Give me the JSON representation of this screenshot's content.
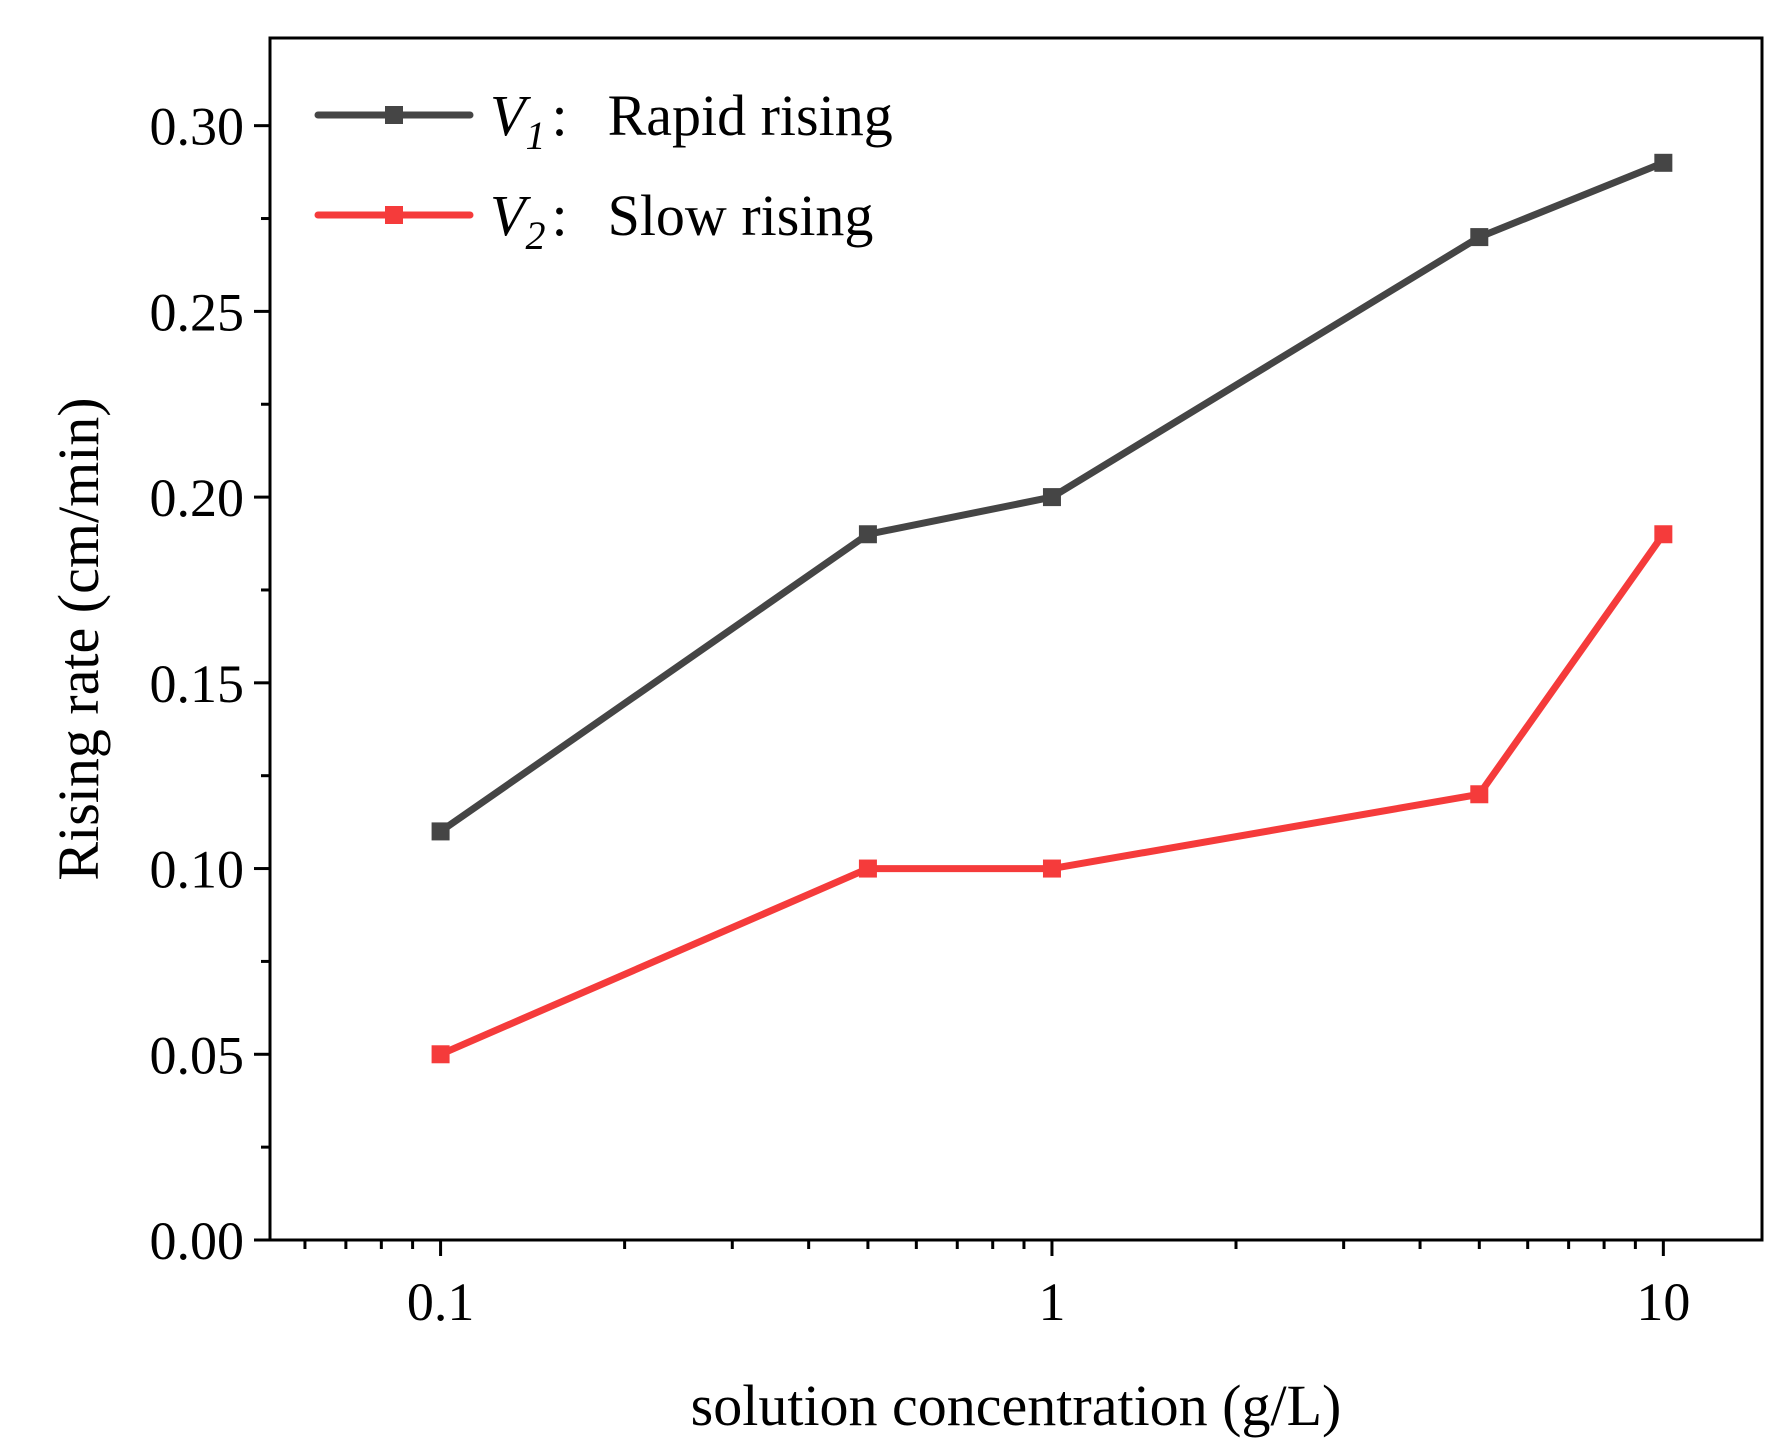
{
  "chart_data": {
    "type": "line",
    "title": "",
    "xlabel": "solution concentration (g/L)",
    "ylabel": "Rising rate (cm/min)",
    "xscale": "log",
    "xlim": [
      0.0526,
      14.5
    ],
    "ylim": [
      0,
      0.3236
    ],
    "x": [
      0.1,
      0.5,
      1,
      5,
      10
    ],
    "x_ticks": [
      0.1,
      1,
      10
    ],
    "x_tick_labels": [
      "0.1",
      "1",
      "10"
    ],
    "y_ticks": [
      0,
      0.05,
      0.1,
      0.15,
      0.2,
      0.25,
      0.3
    ],
    "y_tick_labels": [
      "0.00",
      "0.05",
      "0.10",
      "0.15",
      "0.20",
      "0.25",
      "0.30"
    ],
    "grid": false,
    "legend_position": "top-left",
    "series": [
      {
        "name": "V1: Rapid rising",
        "legend_symbol": "V",
        "legend_subscript": "1",
        "legend_separator": ":",
        "legend_text": "Rapid rising",
        "color": "#454545",
        "values": [
          0.11,
          0.19,
          0.2,
          0.27,
          0.29
        ]
      },
      {
        "name": "V2: Slow rising",
        "legend_symbol": "V",
        "legend_subscript": "2",
        "legend_separator": ":",
        "legend_text": "Slow rising",
        "color": "#f53b3b",
        "values": [
          0.05,
          0.1,
          0.1,
          0.12,
          0.19
        ]
      }
    ]
  }
}
